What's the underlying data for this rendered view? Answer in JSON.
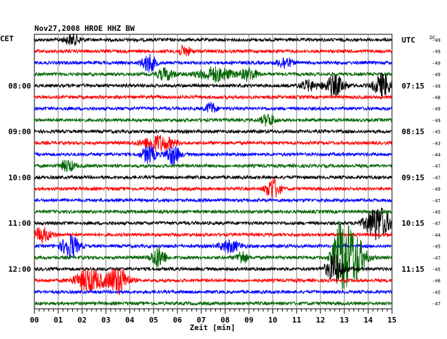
{
  "chart_data": {
    "type": "line",
    "title": "Nov27,2008   HROE HHZ BW",
    "left_timezone": "CET",
    "right_timezone": "UTC",
    "dc_label": "DC",
    "xlabel": "Zeit [min]",
    "x_ticks": [
      "00",
      "01",
      "02",
      "03",
      "04",
      "05",
      "06",
      "07",
      "08",
      "09",
      "10",
      "11",
      "12",
      "13",
      "14",
      "15"
    ],
    "xlim": [
      0,
      15
    ],
    "grid": true,
    "row_colors": [
      "#000000",
      "#ff0000",
      "#0000ff",
      "#006400"
    ],
    "left_time_labels": [
      {
        "row": 4,
        "label": "08:00"
      },
      {
        "row": 8,
        "label": "09:00"
      },
      {
        "row": 12,
        "label": "10:00"
      },
      {
        "row": 16,
        "label": "11:00"
      },
      {
        "row": 20,
        "label": "12:00"
      }
    ],
    "right_time_labels": [
      {
        "row": 0,
        "label": "UTC"
      },
      {
        "row": 4,
        "label": "07:15"
      },
      {
        "row": 8,
        "label": "08:15"
      },
      {
        "row": 12,
        "label": "09:15"
      },
      {
        "row": 16,
        "label": "10:15"
      },
      {
        "row": 20,
        "label": "11:15"
      }
    ],
    "dc_values": [
      -49,
      -49,
      -49,
      -49,
      -49,
      -48,
      -49,
      -49,
      -45,
      -43,
      -44,
      -47,
      -47,
      -49,
      -47,
      -45,
      -47,
      -44,
      -45,
      -47,
      -45,
      -46,
      -45,
      -47
    ],
    "events": [
      {
        "row": 0,
        "minute": 1.6,
        "width": 0.5,
        "amp": 0.25
      },
      {
        "row": 1,
        "minute": 6.3,
        "width": 0.4,
        "amp": 0.25
      },
      {
        "row": 2,
        "minute": 4.8,
        "width": 0.4,
        "amp": 0.45
      },
      {
        "row": 2,
        "minute": 10.5,
        "width": 0.4,
        "amp": 0.3
      },
      {
        "row": 3,
        "minute": 5.5,
        "width": 0.5,
        "amp": 0.3
      },
      {
        "row": 3,
        "minute": 7.6,
        "width": 1.0,
        "amp": 0.35
      },
      {
        "row": 3,
        "minute": 9.0,
        "width": 0.5,
        "amp": 0.3
      },
      {
        "row": 4,
        "minute": 11.5,
        "width": 0.5,
        "amp": 0.25
      },
      {
        "row": 4,
        "minute": 12.6,
        "width": 0.6,
        "amp": 0.5
      },
      {
        "row": 4,
        "minute": 14.6,
        "width": 0.5,
        "amp": 0.6
      },
      {
        "row": 6,
        "minute": 7.4,
        "width": 0.3,
        "amp": 0.3
      },
      {
        "row": 7,
        "minute": 9.8,
        "width": 0.4,
        "amp": 0.3
      },
      {
        "row": 9,
        "minute": 5.2,
        "width": 0.9,
        "amp": 0.4
      },
      {
        "row": 10,
        "minute": 4.8,
        "width": 0.4,
        "amp": 0.45
      },
      {
        "row": 10,
        "minute": 5.8,
        "width": 0.4,
        "amp": 0.5
      },
      {
        "row": 11,
        "minute": 1.4,
        "width": 0.4,
        "amp": 0.3
      },
      {
        "row": 13,
        "minute": 10.0,
        "width": 0.4,
        "amp": 0.55
      },
      {
        "row": 16,
        "minute": 14.4,
        "width": 0.7,
        "amp": 0.9
      },
      {
        "row": 17,
        "minute": 0.3,
        "width": 0.6,
        "amp": 0.35
      },
      {
        "row": 18,
        "minute": 1.5,
        "width": 0.5,
        "amp": 0.6
      },
      {
        "row": 18,
        "minute": 8.2,
        "width": 0.6,
        "amp": 0.3
      },
      {
        "row": 19,
        "minute": 5.2,
        "width": 0.4,
        "amp": 0.55
      },
      {
        "row": 19,
        "minute": 8.7,
        "width": 0.3,
        "amp": 0.35
      },
      {
        "row": 19,
        "minute": 12.8,
        "width": 0.4,
        "amp": 1.3
      },
      {
        "row": 19,
        "minute": 13.3,
        "width": 0.7,
        "amp": 1.5
      },
      {
        "row": 20,
        "minute": 12.6,
        "width": 0.5,
        "amp": 0.7
      },
      {
        "row": 21,
        "minute": 2.3,
        "width": 0.8,
        "amp": 0.6
      },
      {
        "row": 21,
        "minute": 3.5,
        "width": 0.6,
        "amp": 0.7
      }
    ]
  }
}
